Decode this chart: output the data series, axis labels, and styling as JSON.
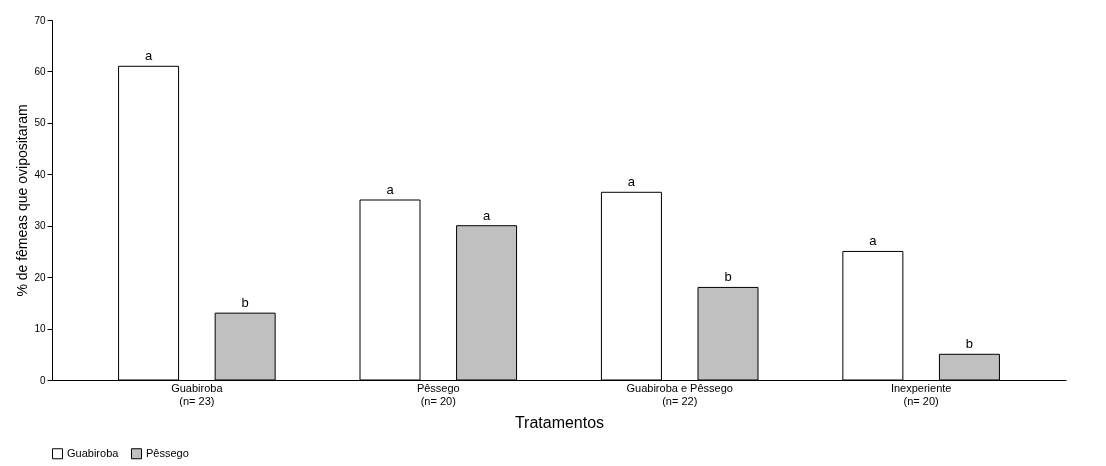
{
  "chart_data": {
    "type": "bar",
    "xlabel": "Tratamentos",
    "ylabel": "% de fêmeas que ovipositaram",
    "categories": [
      "Guabiroba\n(n= 23)",
      "Pêssego\n(n= 20)",
      "Guabiroba e Pêssego\n(n= 22)",
      "Inexperiente\n(n= 20)"
    ],
    "series": [
      {
        "name": "Guabiroba",
        "color": "#ffffff",
        "values": [
          61,
          35,
          36.5,
          25
        ]
      },
      {
        "name": "Pêssego",
        "color": "#c0c0c0",
        "values": [
          13,
          30,
          18,
          5
        ]
      }
    ],
    "ylim": [
      0,
      70
    ],
    "yticks": [
      0,
      10,
      20,
      30,
      40,
      50,
      60,
      70
    ],
    "grid": false,
    "legend": "bottom",
    "annotations": [
      "a",
      "b",
      "a",
      "a",
      "a",
      "b",
      "a",
      "b"
    ]
  }
}
